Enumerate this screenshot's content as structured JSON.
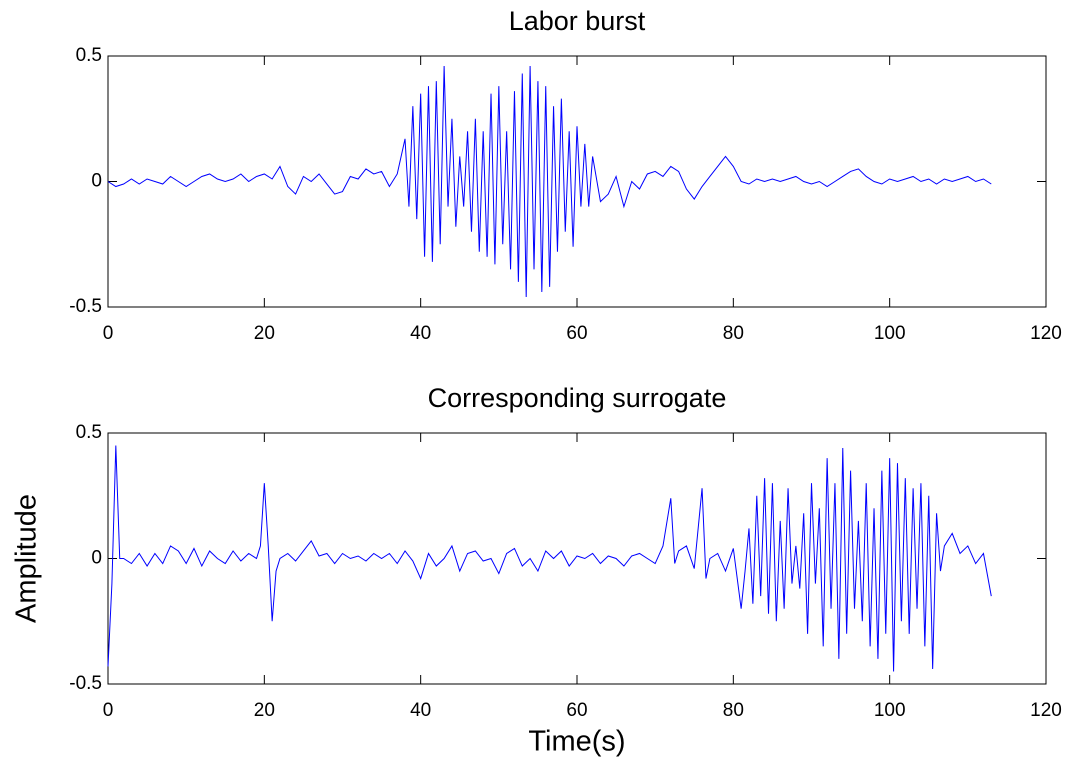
{
  "chart_data": [
    {
      "type": "line",
      "title": "Labor burst",
      "xlim": [
        0,
        120
      ],
      "ylim": [
        -0.5,
        0.5
      ],
      "xticks": [
        0,
        20,
        40,
        60,
        80,
        100,
        120
      ],
      "yticks": [
        -0.5,
        0,
        0.5
      ],
      "x": [
        0,
        1,
        2,
        3,
        4,
        5,
        6,
        7,
        8,
        9,
        10,
        11,
        12,
        13,
        14,
        15,
        16,
        17,
        18,
        19,
        20,
        21,
        22,
        23,
        24,
        25,
        26,
        27,
        28,
        29,
        30,
        31,
        32,
        33,
        34,
        35,
        36,
        37,
        38,
        38.5,
        39,
        39.5,
        40,
        40.5,
        41,
        41.5,
        42,
        42.5,
        43,
        43.5,
        44,
        44.5,
        45,
        45.5,
        46,
        46.5,
        47,
        47.5,
        48,
        48.5,
        49,
        49.5,
        50,
        50.5,
        51,
        51.5,
        52,
        52.5,
        53,
        53.5,
        54,
        54.5,
        55,
        55.5,
        56,
        56.5,
        57,
        57.5,
        58,
        58.5,
        59,
        59.5,
        60,
        60.5,
        61,
        61.5,
        62,
        63,
        64,
        65,
        66,
        67,
        68,
        69,
        70,
        71,
        72,
        73,
        74,
        75,
        76,
        77,
        78,
        79,
        80,
        81,
        82,
        83,
        84,
        85,
        86,
        87,
        88,
        89,
        90,
        91,
        92,
        93,
        94,
        95,
        96,
        97,
        98,
        99,
        100,
        101,
        102,
        103,
        104,
        105,
        106,
        107,
        108,
        109,
        110,
        111,
        112,
        113
      ],
      "series": [
        {
          "color": "#0000ff",
          "values": [
            0,
            -0.02,
            -0.01,
            0.01,
            -0.01,
            0.01,
            0,
            -0.01,
            0.02,
            0,
            -0.02,
            0,
            0.02,
            0.03,
            0.01,
            0,
            0.01,
            0.03,
            0,
            0.02,
            0.03,
            0.01,
            0.06,
            -0.02,
            -0.05,
            0.02,
            0,
            0.03,
            -0.01,
            -0.05,
            -0.04,
            0.02,
            0.01,
            0.05,
            0.03,
            0.04,
            -0.02,
            0.03,
            0.17,
            -0.1,
            0.3,
            -0.15,
            0.35,
            -0.3,
            0.38,
            -0.32,
            0.4,
            -0.25,
            0.46,
            -0.1,
            0.25,
            -0.18,
            0.1,
            -0.1,
            0.2,
            -0.2,
            0.25,
            -0.28,
            0.2,
            -0.3,
            0.35,
            -0.33,
            0.38,
            -0.25,
            0.2,
            -0.35,
            0.36,
            -0.4,
            0.43,
            -0.46,
            0.46,
            -0.35,
            0.4,
            -0.44,
            0.38,
            -0.42,
            0.3,
            -0.28,
            0.33,
            -0.2,
            0.2,
            -0.26,
            0.22,
            -0.1,
            0.15,
            -0.1,
            0.1,
            -0.08,
            -0.05,
            0.02,
            -0.1,
            0,
            -0.03,
            0.03,
            0.04,
            0.02,
            0.06,
            0.04,
            -0.03,
            -0.07,
            -0.02,
            0.02,
            0.06,
            0.1,
            0.06,
            0,
            -0.01,
            0.01,
            0,
            0.01,
            0,
            0.01,
            0.02,
            0,
            -0.01,
            0,
            -0.02,
            0,
            0.02,
            0.04,
            0.05,
            0.02,
            0,
            -0.01,
            0.01,
            0,
            0.01,
            0.02,
            0,
            0.01,
            -0.01,
            0.01,
            0,
            0.01,
            0.02,
            0,
            0.01,
            -0.01
          ]
        }
      ]
    },
    {
      "type": "line",
      "title": "Corresponding surrogate",
      "xlabel": "Time(s)",
      "ylabel": "Amplitude",
      "xlim": [
        0,
        120
      ],
      "ylim": [
        -0.5,
        0.5
      ],
      "xticks": [
        0,
        20,
        40,
        60,
        80,
        100,
        120
      ],
      "yticks": [
        -0.5,
        0,
        0.5
      ],
      "x": [
        0,
        0.5,
        1,
        1.5,
        2,
        3,
        4,
        5,
        6,
        7,
        8,
        9,
        10,
        11,
        12,
        13,
        14,
        15,
        16,
        17,
        18,
        19,
        19.5,
        20,
        20.5,
        21,
        21.5,
        22,
        23,
        24,
        25,
        26,
        27,
        28,
        29,
        30,
        31,
        32,
        33,
        34,
        35,
        36,
        37,
        38,
        39,
        40,
        41,
        42,
        43,
        44,
        45,
        46,
        47,
        48,
        49,
        50,
        51,
        52,
        53,
        54,
        55,
        56,
        57,
        58,
        59,
        60,
        61,
        62,
        63,
        64,
        65,
        66,
        67,
        68,
        69,
        70,
        71,
        72,
        72.5,
        73,
        74,
        75,
        76,
        76.5,
        77,
        78,
        79,
        80,
        81,
        81.5,
        82,
        82.5,
        83,
        83.5,
        84,
        84.5,
        85,
        85.5,
        86,
        86.5,
        87,
        87.5,
        88,
        88.5,
        89,
        89.5,
        90,
        90.5,
        91,
        91.5,
        92,
        92.5,
        93,
        93.5,
        94,
        94.5,
        95,
        95.5,
        96,
        96.5,
        97,
        97.5,
        98,
        98.5,
        99,
        99.5,
        100,
        100.5,
        101,
        101.5,
        102,
        102.5,
        103,
        103.5,
        104,
        104.5,
        105,
        105.5,
        106,
        106.5,
        107,
        108,
        109,
        110,
        111,
        112,
        113
      ],
      "series": [
        {
          "color": "#0000ff",
          "values": [
            -0.43,
            -0.1,
            0.45,
            0,
            0,
            -0.02,
            0.02,
            -0.03,
            0.02,
            -0.02,
            0.05,
            0.03,
            -0.02,
            0.04,
            -0.03,
            0.03,
            0,
            -0.02,
            0.03,
            -0.01,
            0.02,
            0,
            0.05,
            0.3,
            0.05,
            -0.25,
            -0.05,
            0,
            0.02,
            -0.01,
            0.03,
            0.07,
            0.01,
            0.02,
            -0.02,
            0.02,
            0,
            0.01,
            -0.01,
            0.02,
            0,
            0.02,
            -0.02,
            0.03,
            -0.01,
            -0.08,
            0.02,
            -0.03,
            0,
            0.05,
            -0.05,
            0.02,
            0.03,
            -0.01,
            0,
            -0.06,
            0.02,
            0.04,
            -0.03,
            0,
            -0.05,
            0.03,
            0,
            0.03,
            -0.03,
            0.01,
            0,
            0.02,
            -0.02,
            0.01,
            0,
            -0.03,
            0.01,
            0.02,
            0,
            -0.02,
            0.05,
            0.24,
            -0.02,
            0.03,
            0.05,
            -0.04,
            0.28,
            -0.08,
            0,
            0.02,
            -0.05,
            0.04,
            -0.2,
            -0.05,
            0.12,
            -0.18,
            0.25,
            -0.15,
            0.32,
            -0.22,
            0.3,
            -0.25,
            0.15,
            -0.2,
            0.28,
            -0.1,
            0.05,
            -0.12,
            0.18,
            -0.3,
            0.3,
            -0.1,
            0.2,
            -0.35,
            0.4,
            -0.2,
            0.3,
            -0.4,
            0.44,
            -0.3,
            0.35,
            -0.2,
            0.15,
            -0.25,
            0.3,
            -0.35,
            0.2,
            -0.4,
            0.35,
            -0.3,
            0.4,
            -0.45,
            0.38,
            -0.25,
            0.32,
            -0.3,
            0.28,
            -0.2,
            0.3,
            -0.35,
            0.25,
            -0.44,
            0.18,
            -0.05,
            0.05,
            0.1,
            0.02,
            0.05,
            -0.02,
            0.02,
            -0.15
          ]
        }
      ]
    }
  ]
}
